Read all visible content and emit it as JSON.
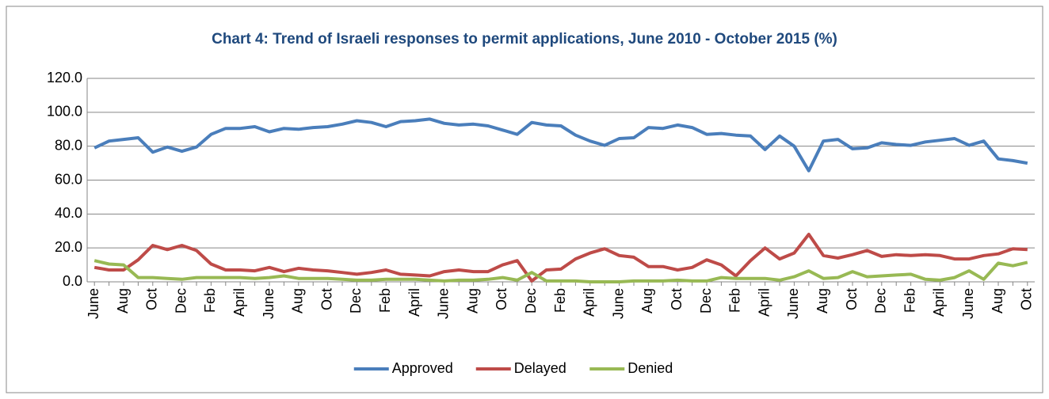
{
  "chart_data": {
    "type": "line",
    "title": "Chart 4: Trend of Israeli responses to permit applications, June 2010 - October 2015 (%)",
    "categories": [
      "June",
      null,
      "Aug",
      null,
      "Oct",
      null,
      "Dec",
      null,
      "Feb",
      null,
      "April",
      null,
      "June",
      null,
      "Aug",
      null,
      "Oct",
      null,
      "Dec",
      null,
      "Feb",
      null,
      "April",
      null,
      "June",
      null,
      "Aug",
      null,
      "Oct",
      null,
      "Dec",
      null,
      "Feb",
      null,
      "April",
      null,
      "June",
      null,
      "Aug",
      null,
      "Oct",
      null,
      "Dec",
      null,
      "Feb",
      null,
      "April",
      null,
      "June",
      null,
      "Aug",
      null,
      "Oct",
      null,
      "Dec",
      null,
      "Feb",
      null,
      "April",
      null,
      "June",
      null,
      "Aug",
      null,
      "Oct"
    ],
    "series": [
      {
        "name": "Approved",
        "color": "#4a7ebb",
        "values": [
          79,
          83,
          84,
          85,
          76.5,
          79.5,
          77,
          79.5,
          87,
          90.5,
          90.5,
          91.5,
          88.5,
          90.5,
          90,
          91,
          91.5,
          93,
          95,
          94,
          91.5,
          94.5,
          95,
          96,
          93.5,
          92.5,
          93,
          92,
          89.5,
          87,
          94,
          92.5,
          92,
          86.5,
          83,
          80.5,
          84.5,
          85,
          91,
          90.5,
          92.5,
          91,
          87,
          87.5,
          86.5,
          86,
          78,
          86,
          80,
          65.5,
          83,
          84,
          78.5,
          79,
          82,
          81,
          80.5,
          82.5,
          83.5,
          84.5,
          80.5,
          83,
          72.5,
          71.5,
          70
        ]
      },
      {
        "name": "Delayed",
        "color": "#be4b48",
        "values": [
          8.5,
          7,
          7,
          13,
          21.5,
          19,
          21.5,
          18.5,
          10.5,
          7,
          7,
          6.5,
          8.5,
          6,
          8,
          7,
          6.5,
          5.5,
          4.5,
          5.5,
          7,
          4.5,
          4,
          3.5,
          6,
          7,
          6,
          6,
          10,
          12.5,
          0.5,
          7,
          7.5,
          13.5,
          17,
          19.5,
          15.5,
          14.5,
          9,
          9,
          7,
          8.5,
          13,
          10,
          3.5,
          12.5,
          20,
          13.5,
          17,
          28,
          15.5,
          14,
          16,
          18.5,
          15,
          16,
          15.5,
          16,
          15.5,
          13.5,
          13.5,
          15.5,
          16.5,
          19.5,
          19
        ]
      },
      {
        "name": "Denied",
        "color": "#98b954",
        "values": [
          12.5,
          10.5,
          10,
          2.5,
          2.5,
          2,
          1.5,
          2.5,
          2.5,
          2.5,
          2.5,
          2,
          2.5,
          3.5,
          2,
          2,
          2,
          1.5,
          1,
          1,
          1.5,
          1.5,
          1.5,
          1,
          0.5,
          1,
          1,
          1.5,
          2.5,
          1,
          5.5,
          0.5,
          0.5,
          0.5,
          0,
          0,
          0,
          0.5,
          0.5,
          0.5,
          1,
          0.5,
          0.5,
          2.5,
          2,
          2,
          2,
          1,
          3,
          6.5,
          2,
          2.5,
          6,
          3,
          3.5,
          4,
          4.5,
          1.5,
          1,
          2.5,
          6.5,
          1.5,
          11,
          9.5,
          11.5
        ]
      }
    ],
    "ylim": [
      0,
      120
    ],
    "yticks": [
      {
        "value": 0,
        "label": "0.0"
      },
      {
        "value": 20,
        "label": "20.0"
      },
      {
        "value": 40,
        "label": "40.0"
      },
      {
        "value": 60,
        "label": "60.0"
      },
      {
        "value": 80,
        "label": "80.0"
      },
      {
        "value": 100,
        "label": "100.0"
      },
      {
        "value": 120,
        "label": "120.0"
      }
    ],
    "grid": true,
    "legend": "bottom"
  }
}
